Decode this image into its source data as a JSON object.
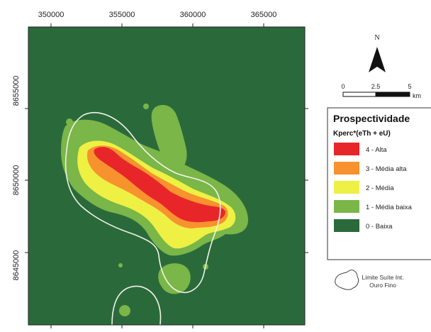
{
  "map": {
    "x_ticks": [
      "350000",
      "355000",
      "360000",
      "365000"
    ],
    "y_ticks": [
      "8655000",
      "8650000",
      "8645000"
    ]
  },
  "north_arrow": {
    "label": "N"
  },
  "scale_bar": {
    "labels": [
      "0",
      "2.5",
      "5"
    ],
    "unit": "km"
  },
  "legend": {
    "title": "Prospectividade",
    "subtitle": "Kperc*(eTh + eU)",
    "items": [
      {
        "label": "4 - Alta",
        "color": "#e8262a"
      },
      {
        "label": "3 - Média alta",
        "color": "#f7922e"
      },
      {
        "label": "2 - Média",
        "color": "#eef044"
      },
      {
        "label": "1 - Média baixa",
        "color": "#7ab648"
      },
      {
        "label": "0 - Baixa",
        "color": "#2a6a3a"
      }
    ]
  },
  "boundary": {
    "label_line1": "Limite Suíte Int.",
    "label_line2": "Ouro Fino"
  },
  "colors": {
    "background": "#2a6a3a",
    "boundary_line": "#f2f2e6"
  }
}
